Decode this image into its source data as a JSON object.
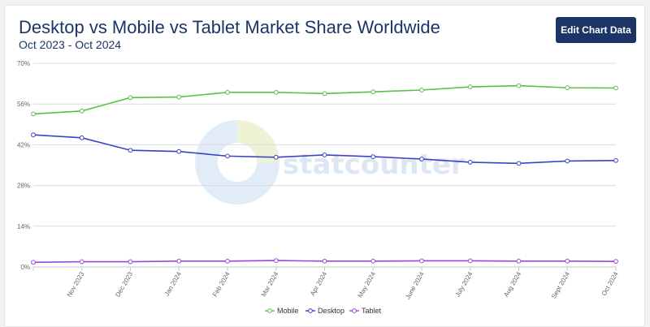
{
  "page": {
    "edit_button_label": "Edit Chart Data",
    "watermark": "statcounter"
  },
  "chart_data": {
    "type": "line",
    "title": "Desktop vs Mobile vs Tablet Market Share Worldwide",
    "subtitle": "Oct 2023 - Oct 2024",
    "categories": [
      "",
      "Nov 2023",
      "Dec 2023",
      "Jan 2024",
      "Feb 2024",
      "Mar 2024",
      "Apr 2024",
      "May 2024",
      "June 2024",
      "July 2024",
      "Aug 2024",
      "Sept 2024",
      "Oct 2024"
    ],
    "y_ticks": [
      "0%",
      "14%",
      "28%",
      "42%",
      "56%",
      "70%"
    ],
    "ylim": [
      0,
      70
    ],
    "grid": true,
    "legend_position": "bottom-center",
    "series": [
      {
        "name": "Mobile",
        "color": "#5cbf4a",
        "values": [
          52.6,
          53.6,
          58.2,
          58.4,
          60.0,
          60.0,
          59.6,
          60.2,
          60.8,
          61.9,
          62.3,
          61.6,
          61.5
        ]
      },
      {
        "name": "Desktop",
        "color": "#3b43c4",
        "values": [
          45.4,
          44.4,
          40.1,
          39.7,
          38.1,
          37.7,
          38.5,
          37.9,
          37.1,
          36.0,
          35.6,
          36.4,
          36.6
        ]
      },
      {
        "name": "Tablet",
        "color": "#9b49d9",
        "values": [
          1.6,
          1.8,
          1.8,
          2.0,
          2.0,
          2.2,
          2.0,
          2.0,
          2.1,
          2.1,
          2.0,
          2.0,
          1.9
        ]
      }
    ]
  }
}
